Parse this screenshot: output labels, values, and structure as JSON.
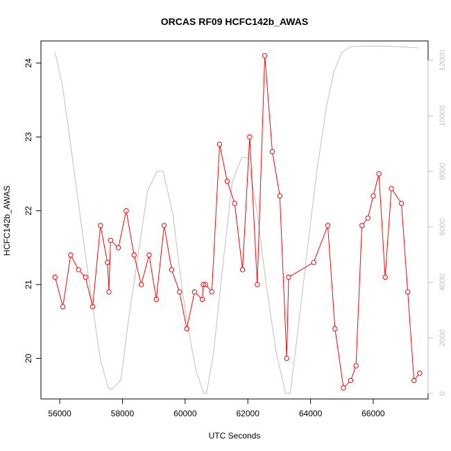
{
  "chart_data": {
    "type": "line",
    "title": "ORCAS RF09 HCFC142b_AWAS",
    "xlabel": "UTC Seconds",
    "ylabel": "HCFC142b_AWAS",
    "xlim": [
      55400,
      67750
    ],
    "ylim": [
      19.45,
      24.3
    ],
    "y2lim": [
      -200,
      12700
    ],
    "x_ticks": [
      56000,
      58000,
      60000,
      62000,
      64000,
      66000
    ],
    "y_ticks": [
      20,
      21,
      22,
      23,
      24
    ],
    "y2_ticks": [
      0,
      2000,
      4000,
      6000,
      8000,
      10000,
      12000
    ],
    "grid": false,
    "legend": "none",
    "colors": {
      "primary": "#ff0000",
      "secondary": "#bebebe",
      "axis": "#000000"
    },
    "series": [
      {
        "axis": "left",
        "style": "line-with-open-circles",
        "color": "#ff0000",
        "x": [
          55850,
          56100,
          56350,
          56600,
          56820,
          57050,
          57300,
          57520,
          57570,
          57620,
          57870,
          58120,
          58370,
          58600,
          58850,
          59080,
          59330,
          59570,
          59820,
          60050,
          60300,
          60550,
          60580,
          60650,
          60850,
          61100,
          61340,
          61580,
          61830,
          62060,
          62300,
          62540,
          62780,
          63020,
          63240,
          63300,
          64100,
          64550,
          64780,
          65050,
          65280,
          65450,
          65640,
          65830,
          66000,
          66180,
          66380,
          66580,
          66900,
          67100,
          67300,
          67480
        ],
        "y": [
          21.1,
          20.7,
          21.4,
          21.2,
          21.1,
          20.7,
          21.8,
          21.3,
          20.9,
          21.6,
          21.5,
          22.0,
          21.4,
          21.0,
          21.4,
          20.8,
          21.8,
          21.2,
          20.9,
          20.4,
          20.9,
          20.8,
          21.0,
          21.0,
          20.9,
          22.9,
          22.4,
          22.1,
          21.2,
          23.0,
          21.0,
          24.1,
          22.8,
          22.2,
          20.0,
          21.1,
          21.3,
          21.8,
          20.4,
          19.6,
          19.7,
          19.9,
          21.8,
          21.9,
          22.2,
          22.5,
          21.1,
          22.3,
          22.1,
          20.9,
          19.7,
          19.8
        ]
      },
      {
        "axis": "right",
        "style": "line",
        "color": "#bebebe",
        "x": [
          55850,
          56100,
          56400,
          56700,
          57000,
          57300,
          57550,
          57650,
          57800,
          57950,
          58200,
          58500,
          58800,
          59100,
          59300,
          59600,
          59900,
          60100,
          60350,
          60600,
          60680,
          60900,
          61200,
          61500,
          61800,
          62000,
          62300,
          62600,
          62900,
          63200,
          63350,
          63600,
          63900,
          64200,
          64500,
          64750,
          65000,
          65300,
          66000,
          66700,
          67450
        ],
        "y": [
          12300,
          11000,
          8500,
          6000,
          3500,
          1200,
          200,
          150,
          300,
          500,
          2700,
          5000,
          7300,
          8000,
          8000,
          6500,
          3800,
          2300,
          800,
          0,
          0,
          1400,
          4600,
          7600,
          8500,
          8500,
          6500,
          3800,
          1500,
          0,
          0,
          2300,
          5200,
          8000,
          10300,
          11600,
          12300,
          12500,
          12520,
          12500,
          12450
        ]
      }
    ]
  }
}
